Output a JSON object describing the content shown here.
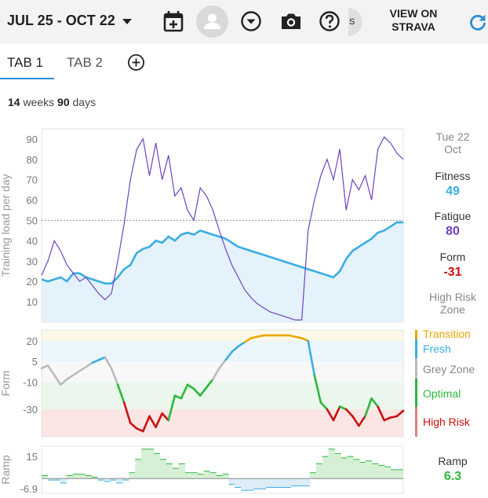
{
  "header": {
    "date_range": "JUL 25 - OCT 22",
    "user_initial": "S",
    "strava_link": "VIEW ON\nSTRAVA"
  },
  "tabs": [
    {
      "label": "TAB 1",
      "active": true
    },
    {
      "label": "TAB 2",
      "active": false
    }
  ],
  "summary": {
    "weeks": "14",
    "weeks_label": "weeks",
    "days": "90",
    "days_label": "days"
  },
  "readout": {
    "date": "Tue 22\nOct",
    "fitness_label": "Fitness",
    "fitness_value": "49",
    "fatigue_label": "Fatigue",
    "fatigue_value": "80",
    "form_label": "Form",
    "form_value": "-31",
    "zone": "High Risk\nZone",
    "ramp_label": "Ramp",
    "ramp_value": "6.3"
  },
  "colors": {
    "fitness": "#3aaee0",
    "fatigue": "#6f42c1",
    "form_value": "#cc1111",
    "ramp": "#2db83d",
    "transition": "#e6a700",
    "fresh": "#3aaee0",
    "grey_zone": "#aaaaaa",
    "optimal": "#2db83d",
    "high_risk": "#cc1111",
    "accent": "#2b8fd6"
  },
  "form_zones": [
    "Transition",
    "Fresh",
    "Grey Zone",
    "Optimal",
    "High Risk"
  ],
  "chart_data": [
    {
      "type": "line",
      "ylabel": "Training load per day",
      "yticks": [
        10,
        20,
        30,
        40,
        50,
        60,
        70,
        80,
        90
      ],
      "ylim": [
        0,
        95
      ],
      "reference_line": 50,
      "series": [
        {
          "name": "Fitness",
          "values": [
            21,
            20,
            21,
            22,
            20,
            24,
            24,
            22,
            21,
            20,
            19,
            19,
            22,
            26,
            28,
            34,
            36,
            37,
            40,
            39,
            42,
            40,
            43,
            44,
            43,
            45,
            44,
            43,
            42,
            41,
            39,
            37,
            36,
            35,
            34,
            33,
            32,
            31,
            30,
            29,
            28,
            27,
            26,
            25,
            24,
            23,
            22,
            25,
            31,
            35,
            37,
            39,
            41,
            44,
            45,
            47,
            49,
            49
          ]
        },
        {
          "name": "Fatigue",
          "values": [
            23,
            30,
            40,
            35,
            28,
            24,
            20,
            22,
            18,
            14,
            11,
            14,
            30,
            48,
            70,
            85,
            90,
            72,
            88,
            70,
            82,
            62,
            66,
            55,
            50,
            66,
            62,
            55,
            45,
            36,
            28,
            22,
            16,
            12,
            9,
            7,
            5,
            4,
            3,
            2,
            1,
            1,
            45,
            60,
            72,
            80,
            70,
            85,
            55,
            70,
            65,
            72,
            60,
            85,
            91,
            88,
            83,
            80
          ]
        }
      ]
    },
    {
      "type": "line",
      "ylabel": "Form",
      "yticks": [
        20,
        5,
        -10,
        -30
      ],
      "ylim": [
        -50,
        28
      ],
      "zones": [
        {
          "name": "Transition",
          "from": 20,
          "to": 28
        },
        {
          "name": "Fresh",
          "from": 5,
          "to": 20
        },
        {
          "name": "Grey Zone",
          "from": -10,
          "to": 5
        },
        {
          "name": "Optimal",
          "from": -30,
          "to": -10
        },
        {
          "name": "High Risk",
          "from": -50,
          "to": -30
        }
      ],
      "series": [
        {
          "name": "Form",
          "values": [
            0,
            2,
            -5,
            -12,
            -8,
            -5,
            -2,
            1,
            4,
            6,
            8,
            0,
            -12,
            -25,
            -40,
            -44,
            -46,
            -35,
            -43,
            -33,
            -38,
            -20,
            -22,
            -12,
            -15,
            -20,
            -14,
            -8,
            0,
            6,
            12,
            16,
            19,
            22,
            23,
            24,
            24,
            24,
            24,
            24,
            23,
            22,
            20,
            -5,
            -25,
            -30,
            -38,
            -28,
            -30,
            -35,
            -42,
            -35,
            -22,
            -28,
            -38,
            -36,
            -35,
            -31
          ]
        }
      ]
    },
    {
      "type": "bar",
      "ylabel": "Ramp",
      "yticks": [
        15,
        -6.9
      ],
      "ylim": [
        -10,
        22
      ],
      "series": [
        {
          "name": "Ramp",
          "values": [
            2,
            -1,
            -1,
            -3,
            2,
            3,
            3,
            2,
            1,
            -1,
            -2,
            -1,
            -3,
            -1,
            4,
            13,
            20,
            20,
            17,
            13,
            10,
            7,
            10,
            4,
            4,
            3,
            5,
            4,
            2,
            3,
            -4,
            -6,
            -8,
            -8,
            -7,
            -7,
            -6,
            -6,
            -6,
            -6,
            -5,
            -5,
            -5,
            4,
            10,
            15,
            20,
            17,
            14,
            15,
            13,
            11,
            12,
            10,
            9,
            8,
            6,
            6
          ]
        }
      ]
    }
  ]
}
